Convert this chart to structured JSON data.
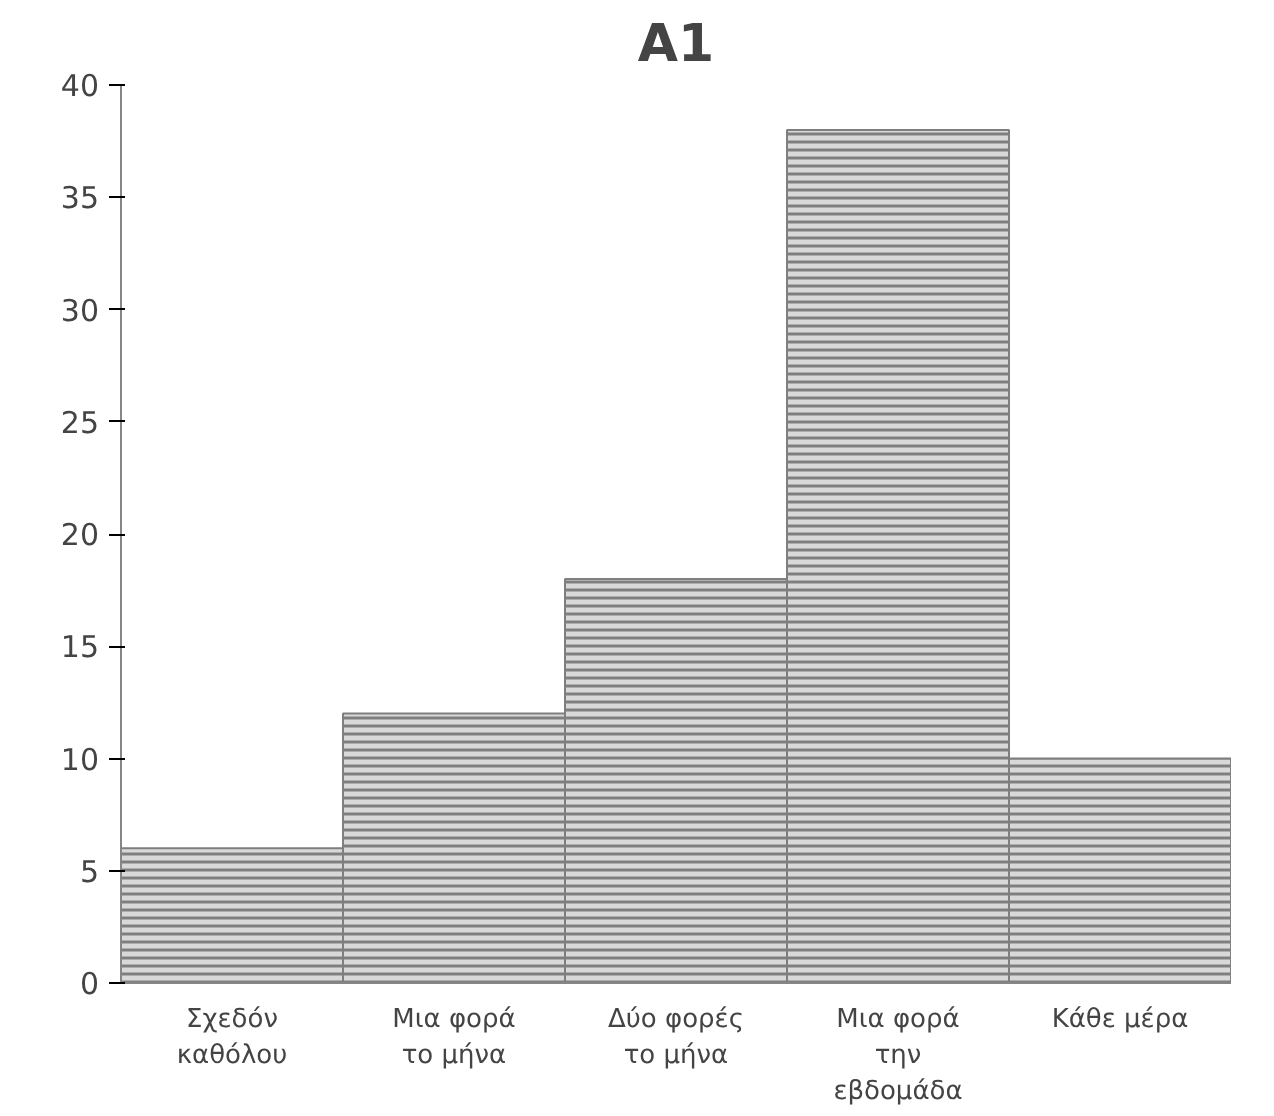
{
  "chart_data": {
    "type": "bar",
    "title": "A1",
    "categories": [
      "Σχεδόν καθόλου",
      "Μια φορά το μήνα",
      "Δύο φορές το μήνα",
      "Μια φορά την εβδομάδα",
      "Κάθε μέρα"
    ],
    "values": [
      6,
      12,
      18,
      38,
      10
    ],
    "color": "#7f7f7f",
    "ylim": [
      0,
      40
    ],
    "yticks": [
      0,
      5,
      10,
      15,
      20,
      25,
      30,
      35,
      40
    ],
    "grid": false
  }
}
